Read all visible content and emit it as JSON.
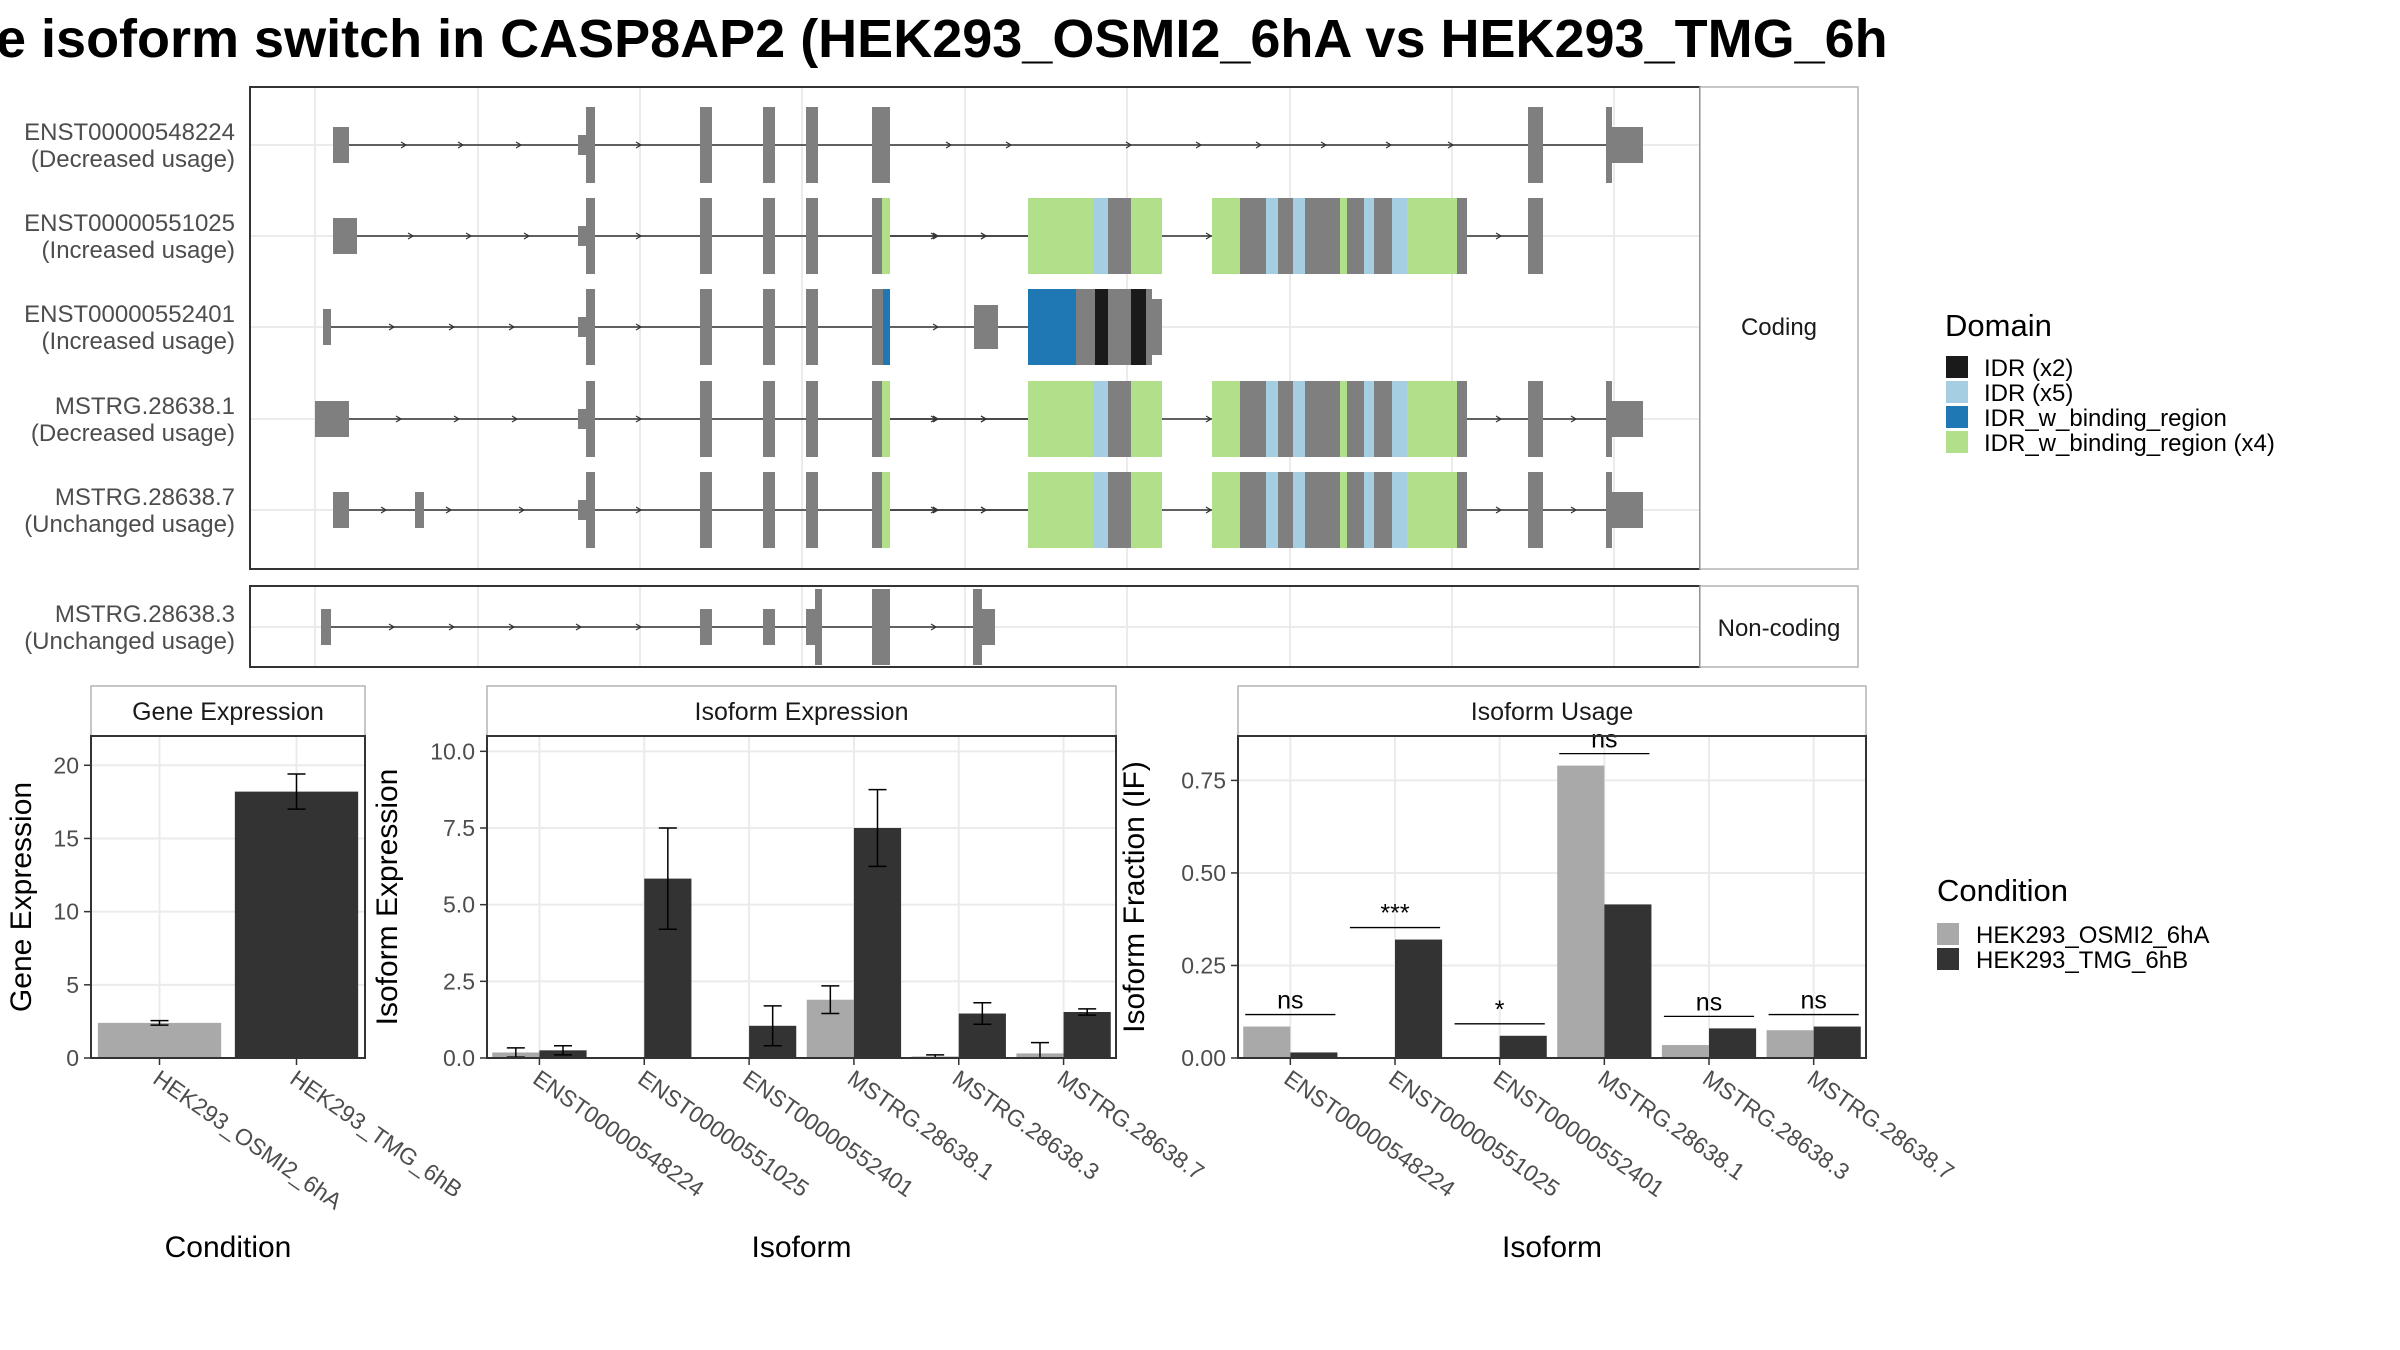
{
  "title": "e isoform switch in CASP8AP2 (HEK293_OSMI2_6hA vs HEK293_TMG_6h",
  "colors": {
    "exon": "#7f7f7f",
    "cond1": "#a9a9a9",
    "cond2": "#333333",
    "domains": [
      "#1a1a1a",
      "#a6cee3",
      "#1f78b4",
      "#b2df8a"
    ],
    "frame": "#333333",
    "grid": "#ebebeb"
  },
  "structure": {
    "facets": [
      "Coding",
      "Non-coding"
    ],
    "coding": [
      {
        "id": "ENST00000548224",
        "usage": "(Decreased usage)"
      },
      {
        "id": "ENST00000551025",
        "usage": "(Increased usage)"
      },
      {
        "id": "ENST00000552401",
        "usage": "(Increased usage)"
      },
      {
        "id": "MSTRG.28638.1",
        "usage": "(Decreased usage)"
      },
      {
        "id": "MSTRG.28638.7",
        "usage": "(Unchanged usage)"
      }
    ],
    "noncoding": [
      {
        "id": "MSTRG.28638.3",
        "usage": "(Unchanged usage)"
      }
    ]
  },
  "legend_domain": {
    "title": "Domain",
    "items": [
      "IDR (x2)",
      "IDR (x5)",
      "IDR_w_binding_region",
      "IDR_w_binding_region (x4)"
    ]
  },
  "legend_condition": {
    "title": "Condition",
    "items": [
      "HEK293_OSMI2_6hA",
      "HEK293_TMG_6hB"
    ]
  },
  "chart_data": [
    {
      "type": "bar",
      "title": "Gene Expression",
      "xlabel": "Condition",
      "ylabel": "Gene Expression",
      "ylim": [
        0,
        22
      ],
      "yticks": [
        "0",
        "5",
        "10",
        "15",
        "20"
      ],
      "categories": [
        "HEK293_OSMI2_6hA",
        "HEK293_TMG_6hB"
      ],
      "values": [
        2.4,
        18.2
      ],
      "errors": [
        0.15,
        1.2
      ]
    },
    {
      "type": "bar",
      "title": "Isoform Expression",
      "xlabel": "Isoform",
      "ylabel": "Isoform Expression",
      "ylim": [
        0,
        10.5
      ],
      "yticks": [
        "0.0",
        "2.5",
        "5.0",
        "7.5",
        "10.0"
      ],
      "categories": [
        "ENST00000548224",
        "ENST00000551025",
        "ENST00000552401",
        "MSTRG.28638.1",
        "MSTRG.28638.3",
        "MSTRG.28638.7"
      ],
      "series": [
        {
          "name": "HEK293_OSMI2_6hA",
          "values": [
            0.18,
            0.0,
            0.0,
            1.9,
            0.05,
            0.15
          ],
          "errors": [
            0.15,
            0.0,
            0.0,
            0.45,
            0.05,
            0.35
          ]
        },
        {
          "name": "HEK293_TMG_6hB",
          "values": [
            0.25,
            5.85,
            1.05,
            7.5,
            1.45,
            1.5
          ],
          "errors": [
            0.15,
            1.65,
            0.65,
            1.25,
            0.35,
            0.1
          ]
        }
      ]
    },
    {
      "type": "bar",
      "title": "Isoform Usage",
      "xlabel": "Isoform",
      "ylabel": "Isoform Fraction (IF)",
      "ylim": [
        0,
        0.87
      ],
      "yticks": [
        "0.00",
        "0.25",
        "0.50",
        "0.75"
      ],
      "categories": [
        "ENST00000548224",
        "ENST00000551025",
        "ENST00000552401",
        "MSTRG.28638.1",
        "MSTRG.28638.3",
        "MSTRG.28638.7"
      ],
      "series": [
        {
          "name": "HEK293_OSMI2_6hA",
          "values": [
            0.085,
            0.0,
            0.0,
            0.79,
            0.035,
            0.075
          ]
        },
        {
          "name": "HEK293_TMG_6hB",
          "values": [
            0.015,
            0.32,
            0.06,
            0.415,
            0.08,
            0.085
          ]
        }
      ],
      "significance": [
        "ns",
        "***",
        "*",
        "ns",
        "ns",
        "ns"
      ]
    }
  ]
}
